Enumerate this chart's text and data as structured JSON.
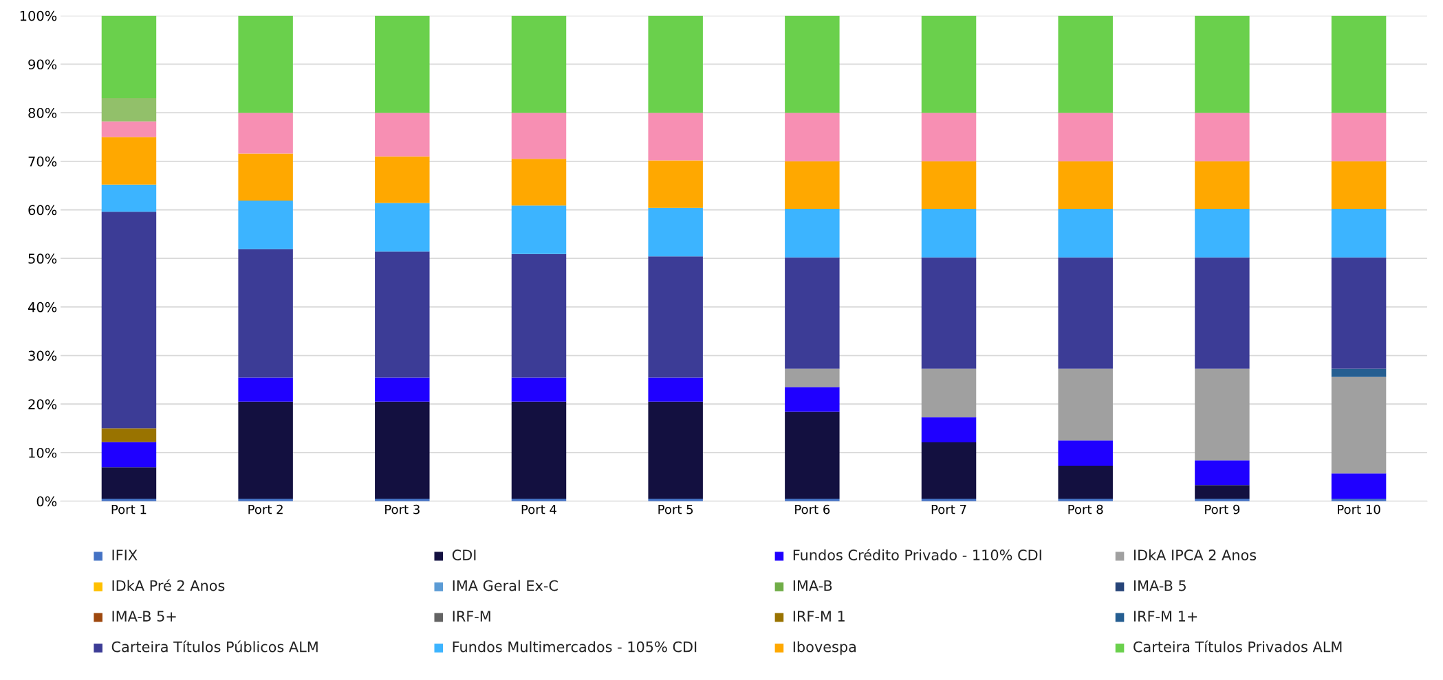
{
  "chart_data": {
    "type": "bar",
    "stacked": true,
    "categories": [
      "Port 1",
      "Port 2",
      "Port 3",
      "Port 4",
      "Port 5",
      "Port 6",
      "Port 7",
      "Port 8",
      "Port 9",
      "Port 10"
    ],
    "series": [
      {
        "name": "IFIX",
        "color": "#4472c4",
        "values": [
          0.5,
          0.5,
          0.5,
          0.5,
          0.5,
          0.5,
          0.5,
          0.5,
          0.5,
          0.5
        ]
      },
      {
        "name": "CDI",
        "color": "#131040",
        "values": [
          6.5,
          20,
          20,
          20,
          20,
          17.9,
          11.6,
          6.8,
          2.8,
          0
        ]
      },
      {
        "name": "Fundos Crédito Privado - 110% CDI",
        "color": "#1f00ff",
        "values": [
          5.2,
          5,
          5,
          5,
          5,
          5.1,
          5.2,
          5.2,
          5.1,
          5.2
        ]
      },
      {
        "name": "IDkA IPCA 2 Anos",
        "color": "#a0a0a0",
        "values": [
          0,
          0,
          0,
          0,
          0,
          3.8,
          10,
          14.8,
          18.9,
          19.9
        ]
      },
      {
        "name": "IDkA Pré 2 Anos",
        "color": "#ffc000",
        "values": [
          0,
          0,
          0,
          0,
          0,
          0,
          0,
          0,
          0,
          0
        ]
      },
      {
        "name": "IMA Geral Ex-C",
        "color": "#5b9bd5",
        "values": [
          0,
          0,
          0,
          0,
          0,
          0,
          0,
          0,
          0,
          0
        ]
      },
      {
        "name": "IMA-B",
        "color": "#70ad47",
        "values": [
          0,
          0,
          0,
          0,
          0,
          0,
          0,
          0,
          0,
          0
        ]
      },
      {
        "name": "IMA-B 5",
        "color": "#264478",
        "values": [
          0,
          0,
          0,
          0,
          0,
          0,
          0,
          0,
          0,
          0
        ]
      },
      {
        "name": "IMA-B 5+",
        "color": "#9e480e",
        "values": [
          0,
          0,
          0,
          0,
          0,
          0,
          0,
          0,
          0,
          0
        ]
      },
      {
        "name": "IRF-M",
        "color": "#636363",
        "values": [
          0,
          0,
          0,
          0,
          0,
          0,
          0,
          0,
          0,
          0
        ]
      },
      {
        "name": "IRF-M 1",
        "color": "#997300",
        "values": [
          2.8,
          0,
          0,
          0,
          0,
          0,
          0,
          0,
          0,
          0
        ]
      },
      {
        "name": "IRF-M 1+",
        "color": "#255e91",
        "values": [
          0,
          0,
          0,
          0,
          0,
          0,
          0,
          0,
          0,
          1.7
        ]
      },
      {
        "name": "Carteira Títulos Públicos ALM",
        "color": "#3c3c96",
        "values": [
          44.6,
          26.4,
          25.9,
          25.4,
          24.9,
          22.9,
          22.9,
          22.9,
          22.9,
          22.9
        ]
      },
      {
        "name": "Fundos Multimercados - 105% CDI",
        "color": "#3cb4ff",
        "values": [
          5.6,
          10,
          10,
          10,
          10,
          10,
          10,
          10,
          10,
          10
        ]
      },
      {
        "name": "Ibovespa",
        "color": "#ffa800",
        "values": [
          9.8,
          9.7,
          9.6,
          9.6,
          9.8,
          9.8,
          9.8,
          9.8,
          9.8,
          9.8
        ]
      },
      {
        "color": "#f78fb3",
        "values": [
          3.2,
          8.4,
          9,
          9.5,
          9.8,
          10,
          10,
          10,
          10,
          10
        ]
      },
      {
        "color": "#92c06a",
        "values": [
          4.8,
          0,
          0,
          0,
          0,
          0,
          0,
          0,
          0,
          0
        ]
      },
      {
        "name": "Carteira Títulos Privados ALM",
        "color": "#6ad04c",
        "values": [
          17,
          20,
          20,
          20,
          20,
          20,
          20,
          20,
          20,
          20
        ]
      }
    ],
    "ylim": [
      0,
      100
    ],
    "yticks": [
      {
        "value": 0,
        "label": "0%"
      },
      {
        "value": 10,
        "label": "10%"
      },
      {
        "value": 20,
        "label": "20%"
      },
      {
        "value": 30,
        "label": "30%"
      },
      {
        "value": 40,
        "label": "40%"
      },
      {
        "value": 50,
        "label": "50%"
      },
      {
        "value": 60,
        "label": "60%"
      },
      {
        "value": 70,
        "label": "70%"
      },
      {
        "value": 80,
        "label": "80%"
      },
      {
        "value": 90,
        "label": "90%"
      },
      {
        "value": 100,
        "label": "100%"
      }
    ],
    "grid": "y",
    "legend": "bottom"
  }
}
